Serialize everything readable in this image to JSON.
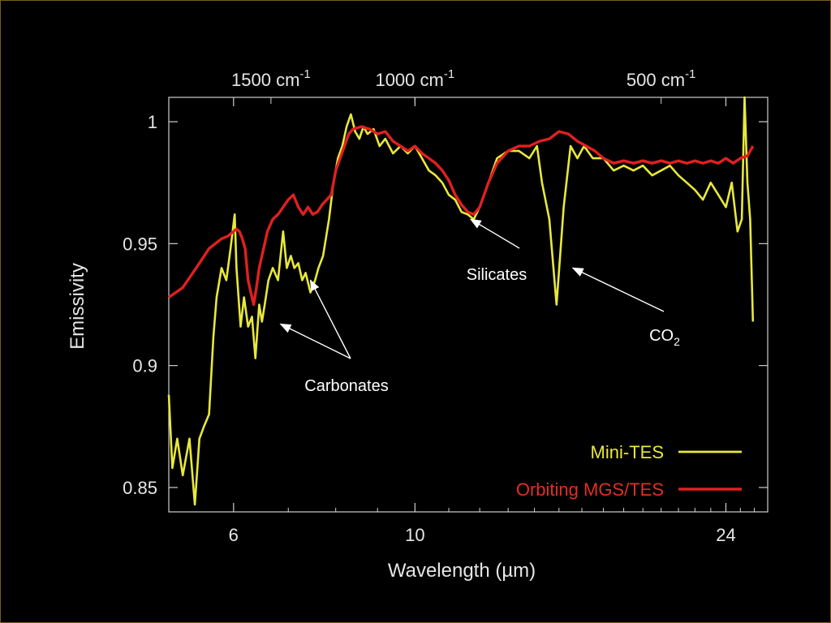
{
  "chart_data": {
    "type": "line",
    "title": "",
    "xlabel": "Wavelength (µm)",
    "ylabel": "Emissivity",
    "xscale": "log",
    "xlim": [
      5.0,
      27.0
    ],
    "ylim": [
      0.84,
      1.01
    ],
    "x_ticks": [
      {
        "value": 6,
        "label": "6"
      },
      {
        "value": 10,
        "label": "10"
      },
      {
        "value": 24,
        "label": "24"
      }
    ],
    "y_ticks": [
      {
        "value": 0.85,
        "label": "0.85"
      },
      {
        "value": 0.9,
        "label": "0.9"
      },
      {
        "value": 0.95,
        "label": "0.95"
      },
      {
        "value": 1.0,
        "label": "1"
      }
    ],
    "top_ticks": [
      {
        "value": 1500,
        "label": "1500 cm",
        "sup": "-1"
      },
      {
        "value": 1000,
        "label": "1000 cm",
        "sup": "-1"
      },
      {
        "value": 500,
        "label": "500 cm",
        "sup": "-1"
      }
    ],
    "legend": {
      "position": "bottom-right"
    },
    "grid": false,
    "series": [
      {
        "name": "Mini-TES",
        "color": "#e8e83a",
        "x": [
          5.0,
          5.05,
          5.12,
          5.2,
          5.3,
          5.38,
          5.45,
          5.52,
          5.6,
          5.67,
          5.72,
          5.8,
          5.88,
          5.95,
          6.02,
          6.05,
          6.12,
          6.18,
          6.25,
          6.32,
          6.38,
          6.45,
          6.5,
          6.55,
          6.62,
          6.7,
          6.8,
          6.9,
          6.97,
          7.05,
          7.12,
          7.2,
          7.28,
          7.35,
          7.45,
          7.55,
          7.62,
          7.72,
          7.85,
          7.95,
          8.05,
          8.15,
          8.25,
          8.35,
          8.45,
          8.55,
          8.65,
          8.75,
          8.9,
          9.05,
          9.2,
          9.4,
          9.6,
          9.8,
          10.0,
          10.2,
          10.4,
          10.6,
          10.8,
          11.0,
          11.2,
          11.4,
          11.6,
          11.8,
          12.0,
          12.3,
          12.6,
          13.0,
          13.4,
          13.8,
          14.1,
          14.3,
          14.6,
          14.9,
          15.2,
          15.5,
          15.8,
          16.1,
          16.5,
          17.0,
          17.5,
          18.0,
          18.5,
          19.0,
          19.5,
          20.0,
          20.5,
          21.0,
          21.5,
          22.0,
          22.5,
          23.0,
          23.5,
          24.0,
          24.4,
          24.8,
          25.1,
          25.3,
          25.5,
          25.7,
          25.9
        ],
        "y": [
          0.888,
          0.858,
          0.87,
          0.855,
          0.87,
          0.843,
          0.87,
          0.875,
          0.88,
          0.912,
          0.928,
          0.94,
          0.935,
          0.948,
          0.962,
          0.94,
          0.916,
          0.928,
          0.916,
          0.92,
          0.903,
          0.925,
          0.918,
          0.925,
          0.935,
          0.94,
          0.935,
          0.955,
          0.94,
          0.945,
          0.94,
          0.942,
          0.935,
          0.938,
          0.93,
          0.935,
          0.94,
          0.945,
          0.96,
          0.975,
          0.985,
          0.99,
          0.998,
          1.003,
          0.996,
          0.993,
          0.998,
          0.995,
          0.997,
          0.99,
          0.993,
          0.987,
          0.99,
          0.987,
          0.99,
          0.985,
          0.98,
          0.978,
          0.975,
          0.97,
          0.968,
          0.963,
          0.962,
          0.96,
          0.965,
          0.975,
          0.985,
          0.988,
          0.988,
          0.985,
          0.99,
          0.975,
          0.96,
          0.925,
          0.965,
          0.99,
          0.985,
          0.99,
          0.985,
          0.985,
          0.98,
          0.982,
          0.98,
          0.982,
          0.978,
          0.98,
          0.982,
          0.978,
          0.975,
          0.972,
          0.968,
          0.975,
          0.97,
          0.965,
          0.975,
          0.955,
          0.96,
          1.01,
          0.975,
          0.96,
          0.918
        ]
      },
      {
        "name": "Orbiting MGS/TES",
        "color": "#e02020",
        "x": [
          5.0,
          5.1,
          5.2,
          5.3,
          5.4,
          5.5,
          5.6,
          5.7,
          5.8,
          5.9,
          6.0,
          6.05,
          6.1,
          6.15,
          6.2,
          6.25,
          6.3,
          6.35,
          6.4,
          6.45,
          6.5,
          6.55,
          6.6,
          6.7,
          6.8,
          6.9,
          7.0,
          7.1,
          7.2,
          7.3,
          7.4,
          7.5,
          7.6,
          7.7,
          7.8,
          7.9,
          8.0,
          8.1,
          8.2,
          8.3,
          8.4,
          8.6,
          8.8,
          9.0,
          9.2,
          9.4,
          9.6,
          9.8,
          10.0,
          10.2,
          10.4,
          10.6,
          10.8,
          11.0,
          11.2,
          11.4,
          11.6,
          11.8,
          12.0,
          12.3,
          12.6,
          13.0,
          13.4,
          13.8,
          14.2,
          14.6,
          15.0,
          15.4,
          15.8,
          16.2,
          16.6,
          17.0,
          17.5,
          18.0,
          18.5,
          19.0,
          19.5,
          20.0,
          20.5,
          21.0,
          21.5,
          22.0,
          22.5,
          23.0,
          23.5,
          24.0,
          24.5,
          25.0,
          25.5,
          25.9
        ],
        "y": [
          0.928,
          0.93,
          0.932,
          0.936,
          0.94,
          0.944,
          0.948,
          0.95,
          0.952,
          0.953,
          0.955,
          0.956,
          0.955,
          0.952,
          0.948,
          0.935,
          0.93,
          0.925,
          0.932,
          0.94,
          0.945,
          0.95,
          0.955,
          0.96,
          0.962,
          0.965,
          0.968,
          0.97,
          0.965,
          0.962,
          0.965,
          0.962,
          0.963,
          0.966,
          0.968,
          0.97,
          0.98,
          0.985,
          0.99,
          0.995,
          0.997,
          0.998,
          0.997,
          0.995,
          0.996,
          0.992,
          0.99,
          0.988,
          0.99,
          0.987,
          0.985,
          0.983,
          0.98,
          0.976,
          0.97,
          0.966,
          0.963,
          0.962,
          0.965,
          0.975,
          0.983,
          0.988,
          0.99,
          0.99,
          0.992,
          0.993,
          0.996,
          0.995,
          0.992,
          0.99,
          0.988,
          0.985,
          0.983,
          0.984,
          0.983,
          0.984,
          0.983,
          0.984,
          0.983,
          0.984,
          0.983,
          0.984,
          0.983,
          0.984,
          0.983,
          0.985,
          0.983,
          0.985,
          0.986,
          0.99
        ]
      }
    ],
    "annotations": [
      {
        "text": "Carbonates",
        "targets": [
          [
            6.85,
            0.917
          ],
          [
            7.45,
            0.935
          ]
        ]
      },
      {
        "text": "Silicates",
        "targets": [
          [
            11.7,
            0.96
          ]
        ]
      },
      {
        "text": "CO",
        "sub": "2",
        "targets": [
          [
            15.6,
            0.94
          ]
        ]
      }
    ]
  }
}
